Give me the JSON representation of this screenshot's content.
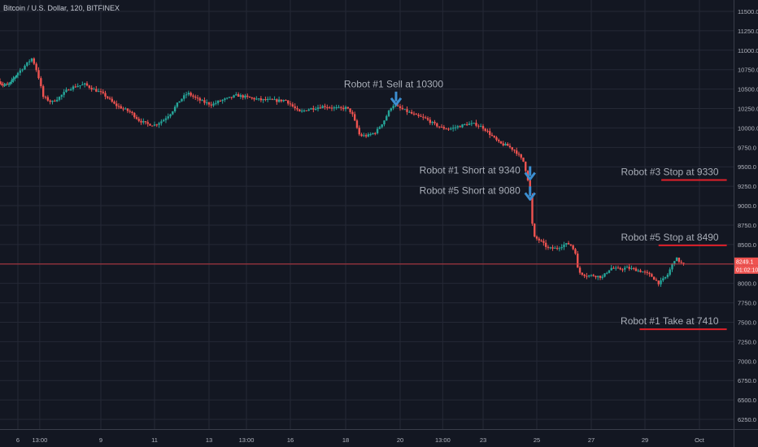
{
  "header": {
    "title": "Bitcoin / U.S. Dollar, 120, BITFINEX"
  },
  "colors": {
    "background": "#131722",
    "grid": "#252936",
    "up": "#26a69a",
    "down": "#ef5350",
    "annotation_line": "#e0202a",
    "arrow": "#3c8ed0",
    "annotation_text": "#a9aeb8",
    "price_line": "#c23a42"
  },
  "chart_data": {
    "type": "candlestick",
    "title": "Bitcoin / U.S. Dollar, 120, BITFINEX",
    "ylim": [
      6100,
      11600
    ],
    "y_ticks": [
      6250,
      6500,
      6750,
      7000,
      7250,
      7500,
      7750,
      8000,
      8250,
      8500,
      8750,
      9000,
      9250,
      9500,
      9750,
      10000,
      10250,
      10500,
      10750,
      11000,
      11250,
      11500
    ],
    "y_tick_labels": [
      "6250.0",
      "6500.0",
      "6750.0",
      "7000.0",
      "7250.0",
      "7500.0",
      "7750.0",
      "8000.0",
      "8250.0",
      "8500.0",
      "8750.0",
      "9000.0",
      "9250.0",
      "9500.0",
      "9750.0",
      "10000.0",
      "10250.0",
      "10500.0",
      "10750.0",
      "11000.0",
      "11250.0",
      "11500.0"
    ],
    "x_ticks": [
      {
        "label": "6",
        "day": 6
      },
      {
        "label": "13:00",
        "day": 6.79
      },
      {
        "label": "9",
        "day": 9
      },
      {
        "label": "11",
        "day": 11
      },
      {
        "label": "13",
        "day": 13
      },
      {
        "label": "13:00",
        "day": 14.38
      },
      {
        "label": "16",
        "day": 16
      },
      {
        "label": "18",
        "day": 18
      },
      {
        "label": "20",
        "day": 20
      },
      {
        "label": "13:00",
        "day": 21.54
      },
      {
        "label": "23",
        "day": 23
      },
      {
        "label": "25",
        "day": 25
      },
      {
        "label": "27",
        "day": 27
      },
      {
        "label": "29",
        "day": 29
      },
      {
        "label": "Oct",
        "day": 31
      }
    ],
    "series_path": [
      [
        5.0,
        10600
      ],
      [
        5.3,
        10550
      ],
      [
        5.6,
        10560
      ],
      [
        5.9,
        10650
      ],
      [
        6.2,
        10750
      ],
      [
        6.6,
        10900
      ],
      [
        6.8,
        10700
      ],
      [
        7.0,
        10400
      ],
      [
        7.3,
        10330
      ],
      [
        7.6,
        10400
      ],
      [
        7.9,
        10500
      ],
      [
        8.2,
        10540
      ],
      [
        8.5,
        10560
      ],
      [
        8.8,
        10500
      ],
      [
        9.1,
        10450
      ],
      [
        9.3,
        10400
      ],
      [
        9.6,
        10300
      ],
      [
        9.9,
        10250
      ],
      [
        10.2,
        10200
      ],
      [
        10.5,
        10100
      ],
      [
        10.8,
        10050
      ],
      [
        11.1,
        10040
      ],
      [
        11.4,
        10100
      ],
      [
        11.7,
        10200
      ],
      [
        12.0,
        10350
      ],
      [
        12.3,
        10450
      ],
      [
        12.6,
        10380
      ],
      [
        12.9,
        10330
      ],
      [
        13.2,
        10300
      ],
      [
        13.5,
        10350
      ],
      [
        13.8,
        10380
      ],
      [
        14.1,
        10420
      ],
      [
        14.4,
        10400
      ],
      [
        14.7,
        10380
      ],
      [
        15.0,
        10360
      ],
      [
        15.3,
        10360
      ],
      [
        15.6,
        10350
      ],
      [
        15.9,
        10360
      ],
      [
        16.1,
        10300
      ],
      [
        16.4,
        10200
      ],
      [
        16.7,
        10240
      ],
      [
        17.0,
        10260
      ],
      [
        17.3,
        10280
      ],
      [
        17.6,
        10260
      ],
      [
        17.9,
        10250
      ],
      [
        18.1,
        10260
      ],
      [
        18.3,
        10200
      ],
      [
        18.6,
        9900
      ],
      [
        18.9,
        9900
      ],
      [
        19.2,
        9950
      ],
      [
        19.5,
        10100
      ],
      [
        19.8,
        10300
      ],
      [
        20.1,
        10250
      ],
      [
        20.4,
        10200
      ],
      [
        20.7,
        10150
      ],
      [
        21.0,
        10120
      ],
      [
        21.3,
        10050
      ],
      [
        21.6,
        10000
      ],
      [
        21.9,
        9990
      ],
      [
        22.2,
        10020
      ],
      [
        22.5,
        10050
      ],
      [
        22.8,
        10050
      ],
      [
        23.1,
        10000
      ],
      [
        23.4,
        9900
      ],
      [
        23.7,
        9800
      ],
      [
        24.0,
        9770
      ],
      [
        24.3,
        9700
      ],
      [
        24.6,
        9560
      ],
      [
        24.75,
        9340
      ],
      [
        24.85,
        9080
      ],
      [
        24.95,
        8600
      ],
      [
        25.2,
        8550
      ],
      [
        25.5,
        8450
      ],
      [
        25.8,
        8450
      ],
      [
        26.1,
        8500
      ],
      [
        26.3,
        8510
      ],
      [
        26.5,
        8400
      ],
      [
        26.6,
        8150
      ],
      [
        26.9,
        8100
      ],
      [
        27.2,
        8100
      ],
      [
        27.5,
        8080
      ],
      [
        27.8,
        8200
      ],
      [
        28.1,
        8180
      ],
      [
        28.4,
        8200
      ],
      [
        28.7,
        8180
      ],
      [
        29.0,
        8150
      ],
      [
        29.3,
        8100
      ],
      [
        29.6,
        8000
      ],
      [
        29.9,
        8100
      ],
      [
        30.2,
        8330
      ],
      [
        30.45,
        8249
      ]
    ],
    "price_line": {
      "value": 8249,
      "label": "8249.1",
      "countdown": "01:02:10"
    },
    "annotations": [
      {
        "text": "Robot #1 Sell at 10300",
        "arrow_day": 19.85,
        "arrow_price": 10300
      },
      {
        "text": "Robot #1 Short at 9340",
        "arrow_day": 24.75,
        "arrow_price": 9340
      },
      {
        "text": "Robot #5 Short at 9080",
        "arrow_day": 24.75,
        "arrow_price": 9080
      }
    ],
    "levels": [
      {
        "text": "Robot #3 Stop at 9330",
        "price": 9330,
        "from_day": 29.6,
        "to_day": 31.8
      },
      {
        "text": "Robot #5 Stop at 8490",
        "price": 8490,
        "from_day": 29.5,
        "to_day": 31.8
      },
      {
        "text": "Robot #1 Take at 7410",
        "price": 7410,
        "from_day": 28.8,
        "to_day": 31.8
      }
    ]
  }
}
